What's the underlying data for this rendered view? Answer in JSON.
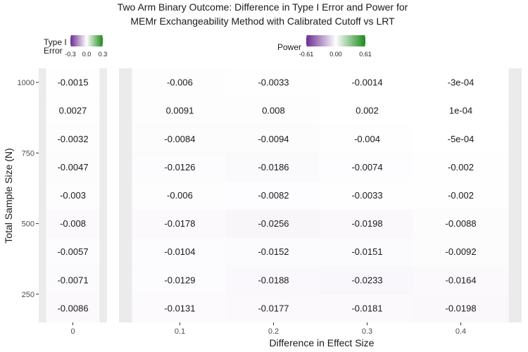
{
  "chart_data": {
    "type": "heatmap",
    "title": "Two Arm Binary Outcome: Difference in Type I Error and Power for",
    "subtitle": "MEMr Exchangeability Method with Calibrated Cutoff vs LRT",
    "xlabel": "Difference in Effect Size",
    "ylabel": "Total Sample Size (N)",
    "y_ticks": [
      250,
      500,
      750,
      1000
    ],
    "ylim": [
      150,
      1050
    ],
    "sample_sizes": [
      200,
      300,
      400,
      500,
      600,
      700,
      800,
      900,
      1000
    ],
    "panels": [
      {
        "name": "Type I Error",
        "legend_title_lines": [
          "Type I",
          "Error"
        ],
        "legend_ticks": [
          "-0.3",
          "0.0",
          "0.3"
        ],
        "scale_limits": [
          -0.3,
          0.3
        ],
        "x_tick_labels": [
          "0"
        ],
        "columns": [
          {
            "effect": 0,
            "values": [
              -0.0086,
              -0.0071,
              -0.0057,
              -0.008,
              -0.003,
              -0.0047,
              -0.0032,
              0.0027,
              -0.0015
            ],
            "labels": [
              "-0.0086",
              "-0.0071",
              "-0.0057",
              "-0.008",
              "-0.003",
              "-0.0047",
              "-0.0032",
              "0.0027",
              "-0.0015"
            ]
          }
        ]
      },
      {
        "name": "Power",
        "legend_title_lines": [
          "Power"
        ],
        "legend_ticks": [
          "-0.61",
          "0.00",
          "0.61"
        ],
        "scale_limits": [
          -0.61,
          0.61
        ],
        "x_tick_labels": [
          "0.1",
          "0.2",
          "0.3",
          "0.4"
        ],
        "columns": [
          {
            "effect": 0.1,
            "values": [
              -0.0131,
              -0.0129,
              -0.0104,
              -0.0178,
              -0.006,
              -0.0126,
              -0.0084,
              0.0091,
              -0.006
            ],
            "labels": [
              "-0.0131",
              "-0.0129",
              "-0.0104",
              "-0.0178",
              "-0.006",
              "-0.0126",
              "-0.0084",
              "0.0091",
              "-0.006"
            ]
          },
          {
            "effect": 0.2,
            "values": [
              -0.0177,
              -0.0188,
              -0.0152,
              -0.0256,
              -0.0082,
              -0.0186,
              -0.0094,
              0.008,
              -0.0033
            ],
            "labels": [
              "-0.0177",
              "-0.0188",
              "-0.0152",
              "-0.0256",
              "-0.0082",
              "-0.0186",
              "-0.0094",
              "0.008",
              "-0.0033"
            ]
          },
          {
            "effect": 0.3,
            "values": [
              -0.0181,
              -0.0233,
              -0.0151,
              -0.0198,
              -0.0033,
              -0.0074,
              -0.004,
              0.002,
              -0.0014
            ],
            "labels": [
              "-0.0181",
              "-0.0233",
              "-0.0151",
              "-0.0198",
              "-0.0033",
              "-0.0074",
              "-0.004",
              "0.002",
              "-0.0014"
            ]
          },
          {
            "effect": 0.4,
            "values": [
              -0.0198,
              -0.0164,
              -0.0092,
              -0.0088,
              -0.002,
              -0.002,
              -0.0005,
              0.0001,
              -0.0003
            ],
            "labels": [
              "-0.0198",
              "-0.0164",
              "-0.0092",
              "-0.0088",
              "-0.002",
              "-0.002",
              "-5e-04",
              "1e-04",
              "-3e-04"
            ]
          }
        ]
      }
    ],
    "colors": {
      "negative": "#6a2c91",
      "midpoint": "#ffffff",
      "positive": "#1b8a1b",
      "panel_background": "#ebebeb"
    },
    "grid": true,
    "legend_position": "top"
  }
}
